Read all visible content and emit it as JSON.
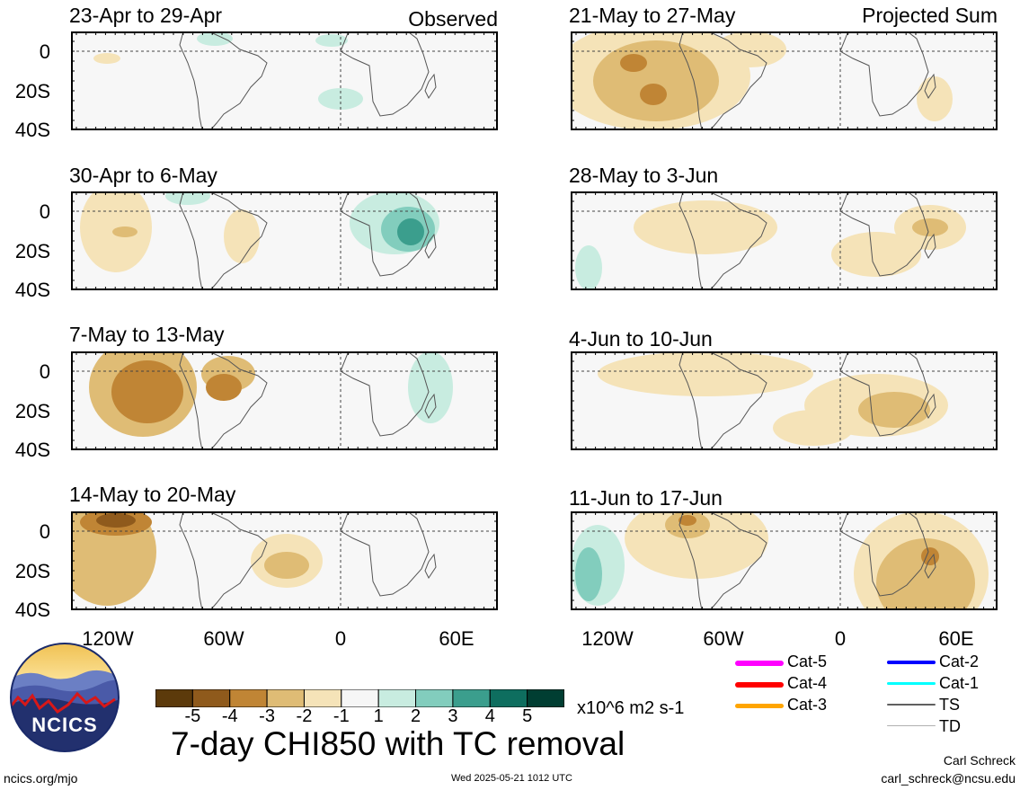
{
  "headers": {
    "observed": "Observed",
    "projected": "Projected Sum"
  },
  "panels": [
    {
      "title": "23-Apr to 29-Apr"
    },
    {
      "title": "30-Apr to 6-May"
    },
    {
      "title": "7-May to 13-May"
    },
    {
      "title": "14-May to 20-May"
    },
    {
      "title": "21-May to 27-May"
    },
    {
      "title": "28-May to 3-Jun"
    },
    {
      "title": "4-Jun to 10-Jun"
    },
    {
      "title": "11-Jun to 17-Jun"
    }
  ],
  "lat_labels": [
    "0",
    "20S",
    "40S"
  ],
  "lon_labels": [
    "120W",
    "60W",
    "0",
    "60E"
  ],
  "colorbar": {
    "colors": [
      "#5c3a0b",
      "#8f5a1c",
      "#c08535",
      "#dfbc75",
      "#f5e3b8",
      "#f6f6f6",
      "#c8ece0",
      "#82cdbd",
      "#3b9e8d",
      "#0e6e5f",
      "#003e32"
    ],
    "labels": [
      "-5",
      "-4",
      "-3",
      "-2",
      "-1",
      "1",
      "2",
      "3",
      "4",
      "5"
    ],
    "units": "x10^6 m2 s-1"
  },
  "tc_legend": [
    {
      "label": "Cat-5",
      "color": "#ff00ff"
    },
    {
      "label": "Cat-4",
      "color": "#ff0000"
    },
    {
      "label": "Cat-3",
      "color": "#ffa500"
    },
    {
      "label": "Cat-2",
      "color": "#0000ff"
    },
    {
      "label": "Cat-1",
      "color": "#00ffff"
    },
    {
      "label": "TS",
      "color": "#606060"
    },
    {
      "label": "TD",
      "color": "#b0b0b0"
    }
  ],
  "main_title": "7-day CHI850 with TC removal",
  "footer": {
    "left": "ncics.org/mjo",
    "center": "Wed 2025-05-21 1012 UTC",
    "author": "Carl Schreck",
    "email": "carl_schreck@ncsu.edu"
  },
  "logo_text": "NCICS"
}
